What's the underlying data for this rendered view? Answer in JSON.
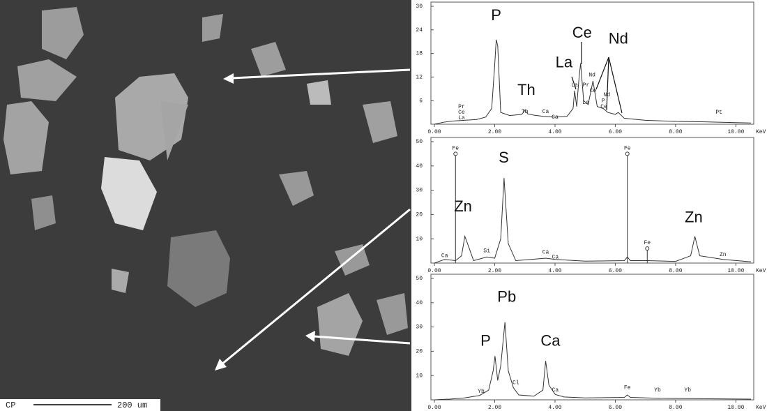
{
  "image": {
    "scale_prefix": "CP",
    "scale_text": "200 um"
  },
  "chart_data": [
    {
      "type": "line",
      "x_label": "KeV",
      "color": "#333333",
      "xlim": [
        0,
        10.5
      ],
      "ylim": [
        0,
        30
      ],
      "xticks": [
        {
          "value": 0,
          "label": "0.00"
        },
        {
          "value": 2,
          "label": "2.00"
        },
        {
          "value": 4,
          "label": "4.00"
        },
        {
          "value": 6,
          "label": "6.00"
        },
        {
          "value": 8,
          "label": "8.00"
        },
        {
          "value": 10,
          "label": "10.00"
        }
      ],
      "yticks": [
        6,
        12,
        18,
        24,
        30
      ],
      "x": [
        0,
        0.3,
        0.6,
        1.0,
        1.4,
        1.7,
        1.9,
        2.0,
        2.05,
        2.1,
        2.2,
        2.5,
        2.9,
        3.0,
        3.1,
        3.3,
        3.6,
        4.0,
        4.4,
        4.6,
        4.65,
        4.72,
        4.8,
        4.85,
        4.95,
        5.1,
        5.26,
        5.4,
        5.6,
        5.75,
        6.0,
        6.1,
        6.3,
        7.0,
        8.0,
        9.0,
        10.0,
        10.5
      ],
      "values": [
        0,
        0.5,
        0.8,
        1.0,
        1.2,
        1.8,
        4,
        15,
        21.5,
        20,
        3,
        2.2,
        2.5,
        3.5,
        2.6,
        2.3,
        2.0,
        1.8,
        2.0,
        4,
        8.5,
        4.5,
        12,
        15.5,
        6,
        5,
        11,
        4.5,
        4,
        3,
        2.5,
        3,
        1.5,
        1,
        0.7,
        0.6,
        0.4,
        0.3
      ],
      "labels": [
        {
          "text": "P",
          "x": 2.05,
          "y": 27.5
        },
        {
          "text": "Th",
          "x": 3.05,
          "y": 8.5
        },
        {
          "text": "La",
          "x": 4.3,
          "y": 15.5
        },
        {
          "text": "Ce",
          "x": 4.9,
          "y": 23
        },
        {
          "text": "Nd",
          "x": 6.1,
          "y": 21.5
        }
      ],
      "element_marks": [
        {
          "text": "Pr",
          "x": 0.9,
          "y": 4.5
        },
        {
          "text": "Ce",
          "x": 0.9,
          "y": 3
        },
        {
          "text": "La",
          "x": 0.9,
          "y": 1.6
        },
        {
          "text": "Th",
          "x": 3.0,
          "y": 3.2
        },
        {
          "text": "Ca",
          "x": 3.69,
          "y": 3.2
        },
        {
          "text": "Ca",
          "x": 4.0,
          "y": 1.8
        },
        {
          "text": "La",
          "x": 4.65,
          "y": 10
        },
        {
          "text": "Nd",
          "x": 5.23,
          "y": 12.5
        },
        {
          "text": "Pr",
          "x": 5.03,
          "y": 10
        },
        {
          "text": "Ce",
          "x": 5.26,
          "y": 8.5
        },
        {
          "text": "Nd",
          "x": 5.72,
          "y": 7.5
        },
        {
          "text": "La",
          "x": 5.02,
          "y": 5.5
        },
        {
          "text": "P",
          "x": 5.6,
          "y": 6
        },
        {
          "text": "Ce",
          "x": 5.62,
          "y": 4.5
        },
        {
          "text": "Pt",
          "x": 9.44,
          "y": 3
        }
      ]
    },
    {
      "type": "line",
      "x_label": "KeV",
      "color": "#333333",
      "xlim": [
        0,
        10.5
      ],
      "ylim": [
        0,
        50
      ],
      "xticks": [
        {
          "value": 0,
          "label": "0.00"
        },
        {
          "value": 2,
          "label": "2.00"
        },
        {
          "value": 4,
          "label": "4.00"
        },
        {
          "value": 6,
          "label": "6.00"
        },
        {
          "value": 8,
          "label": "8.00"
        },
        {
          "value": 10,
          "label": "10.00"
        }
      ],
      "yticks": [
        10,
        20,
        30,
        40,
        50
      ],
      "x": [
        0,
        0.34,
        0.7,
        0.9,
        1.01,
        1.1,
        1.3,
        1.74,
        2.0,
        2.2,
        2.31,
        2.45,
        2.7,
        3.69,
        4.0,
        5.0,
        6.3,
        6.4,
        6.5,
        7.06,
        8.0,
        8.5,
        8.64,
        8.8,
        9.57,
        10.5
      ],
      "values": [
        0,
        1.5,
        1,
        3,
        11,
        8,
        1,
        2.5,
        2,
        10,
        35,
        8,
        1,
        2,
        1.5,
        0.8,
        1,
        2.5,
        1,
        1,
        0.7,
        3,
        11,
        3,
        1.5,
        0.5
      ],
      "markers": [
        {
          "label": "Fe",
          "x": 0.7,
          "y": 45
        },
        {
          "label": "Fe",
          "x": 6.4,
          "y": 45
        },
        {
          "label": "Fe",
          "x": 7.06,
          "y": 6
        }
      ],
      "labels": [
        {
          "text": "Zn",
          "x": 0.95,
          "y": 23
        },
        {
          "text": "S",
          "x": 2.3,
          "y": 43
        },
        {
          "text": "Zn",
          "x": 8.6,
          "y": 18.5
        }
      ],
      "element_marks": [
        {
          "text": "Ca",
          "x": 0.34,
          "y": 3
        },
        {
          "text": "Si",
          "x": 1.74,
          "y": 5
        },
        {
          "text": "Ca",
          "x": 3.69,
          "y": 4.5
        },
        {
          "text": "Ca",
          "x": 4.01,
          "y": 2.5
        },
        {
          "text": "Zn",
          "x": 9.57,
          "y": 3.5
        }
      ]
    },
    {
      "type": "line",
      "x_label": "KeV",
      "color": "#333333",
      "xlim": [
        0,
        10.5
      ],
      "ylim": [
        0,
        50
      ],
      "xticks": [
        {
          "value": 0,
          "label": "0.00"
        },
        {
          "value": 2,
          "label": "2.00"
        },
        {
          "value": 4,
          "label": "4.00"
        },
        {
          "value": 6,
          "label": "6.00"
        },
        {
          "value": 8,
          "label": "8.00"
        },
        {
          "value": 10,
          "label": "10.00"
        }
      ],
      "yticks": [
        10,
        20,
        30,
        40,
        50
      ],
      "x": [
        0,
        0.5,
        1.0,
        1.5,
        1.8,
        1.95,
        2.01,
        2.1,
        2.2,
        2.34,
        2.45,
        2.62,
        2.8,
        3.3,
        3.6,
        3.69,
        3.8,
        4.01,
        4.3,
        5.0,
        6.3,
        6.4,
        6.5,
        7.5,
        8.5,
        9.5,
        10.5
      ],
      "values": [
        0,
        0.3,
        0.8,
        1.8,
        4,
        12,
        18,
        8,
        14,
        32,
        12,
        5,
        2,
        1.5,
        4,
        16,
        6,
        2.2,
        1.2,
        0.8,
        1,
        2,
        1,
        0.6,
        0.5,
        0.4,
        0.3
      ],
      "labels": [
        {
          "text": "P",
          "x": 1.7,
          "y": 24
        },
        {
          "text": "Pb",
          "x": 2.4,
          "y": 42
        },
        {
          "text": "Ca",
          "x": 3.85,
          "y": 24
        }
      ],
      "element_marks": [
        {
          "text": "Yb",
          "x": 1.55,
          "y": 3.5
        },
        {
          "text": "Cl",
          "x": 2.7,
          "y": 7
        },
        {
          "text": "Ca",
          "x": 4.01,
          "y": 4
        },
        {
          "text": "Fe",
          "x": 6.4,
          "y": 5
        },
        {
          "text": "Yb",
          "x": 7.4,
          "y": 4
        },
        {
          "text": "Yb",
          "x": 8.4,
          "y": 4
        }
      ]
    }
  ]
}
